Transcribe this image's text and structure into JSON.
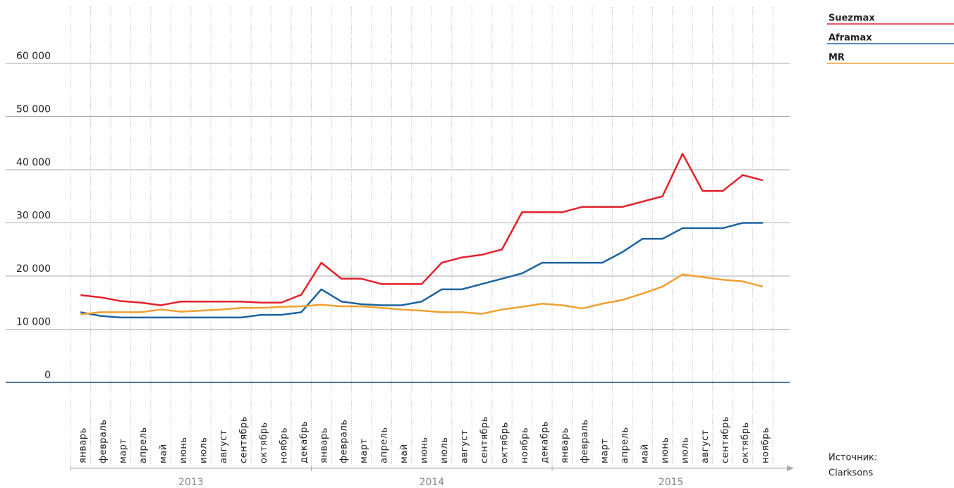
{
  "chart_data": {
    "type": "line",
    "categories": [
      "январь",
      "февраль",
      "март",
      "апрель",
      "май",
      "июнь",
      "июль",
      "август",
      "сентябрь",
      "октябрь",
      "ноябрь",
      "декабрь",
      "январь",
      "февраль",
      "март",
      "апрель",
      "май",
      "июнь",
      "июль",
      "август",
      "сентябрь",
      "октябрь",
      "ноябрь",
      "декабрь",
      "январь",
      "февраль",
      "март",
      "апрель",
      "май",
      "июнь",
      "июль",
      "август",
      "сентябрь",
      "октябрь",
      "ноябрь"
    ],
    "years": [
      "2013",
      "2014",
      "2015"
    ],
    "series": [
      {
        "name": "Suezmax",
        "color": "#e3212b",
        "values": [
          16400,
          16000,
          15300,
          15000,
          14500,
          15200,
          15200,
          15200,
          15200,
          15000,
          15000,
          16500,
          22500,
          19500,
          19500,
          18500,
          18500,
          18500,
          22500,
          23500,
          24000,
          25000,
          32000,
          32000,
          32000,
          33000,
          33000,
          33000,
          34000,
          35000,
          43000,
          36000,
          36000,
          39000,
          38000
        ]
      },
      {
        "name": "Aframax",
        "color": "#1e64a0",
        "values": [
          13200,
          12500,
          12200,
          12200,
          12200,
          12200,
          12200,
          12200,
          12200,
          12700,
          12700,
          13200,
          17500,
          15200,
          14700,
          14500,
          14500,
          15200,
          17500,
          17500,
          18500,
          19500,
          20500,
          22500,
          22500,
          22500,
          22500,
          24500,
          27000,
          27000,
          29000,
          29000,
          29000,
          30000,
          30000
        ]
      },
      {
        "name": "MR",
        "color": "#f0a030",
        "values": [
          12800,
          13200,
          13200,
          13200,
          13700,
          13300,
          13500,
          13700,
          14000,
          14000,
          14200,
          14300,
          14600,
          14300,
          14300,
          14000,
          13700,
          13500,
          13200,
          13200,
          12900,
          13700,
          14200,
          14800,
          14500,
          13900,
          14800,
          15500,
          16700,
          18000,
          20300,
          19800,
          19300,
          19000,
          18000
        ]
      }
    ],
    "ylim": [
      0,
      70000
    ],
    "yticks": [
      0,
      {
        "value": 10000,
        "label": "10 000"
      },
      {
        "value": 20000,
        "label": "20 000"
      },
      {
        "value": 30000,
        "label": "30 000"
      },
      {
        "value": 40000,
        "label": "40 000"
      },
      {
        "value": 50000,
        "label": "50 000"
      },
      {
        "value": 60000,
        "label": "60 000"
      }
    ],
    "grid": true,
    "legend": "top-right",
    "source": "Источник:",
    "source_name": "Clarksons"
  }
}
